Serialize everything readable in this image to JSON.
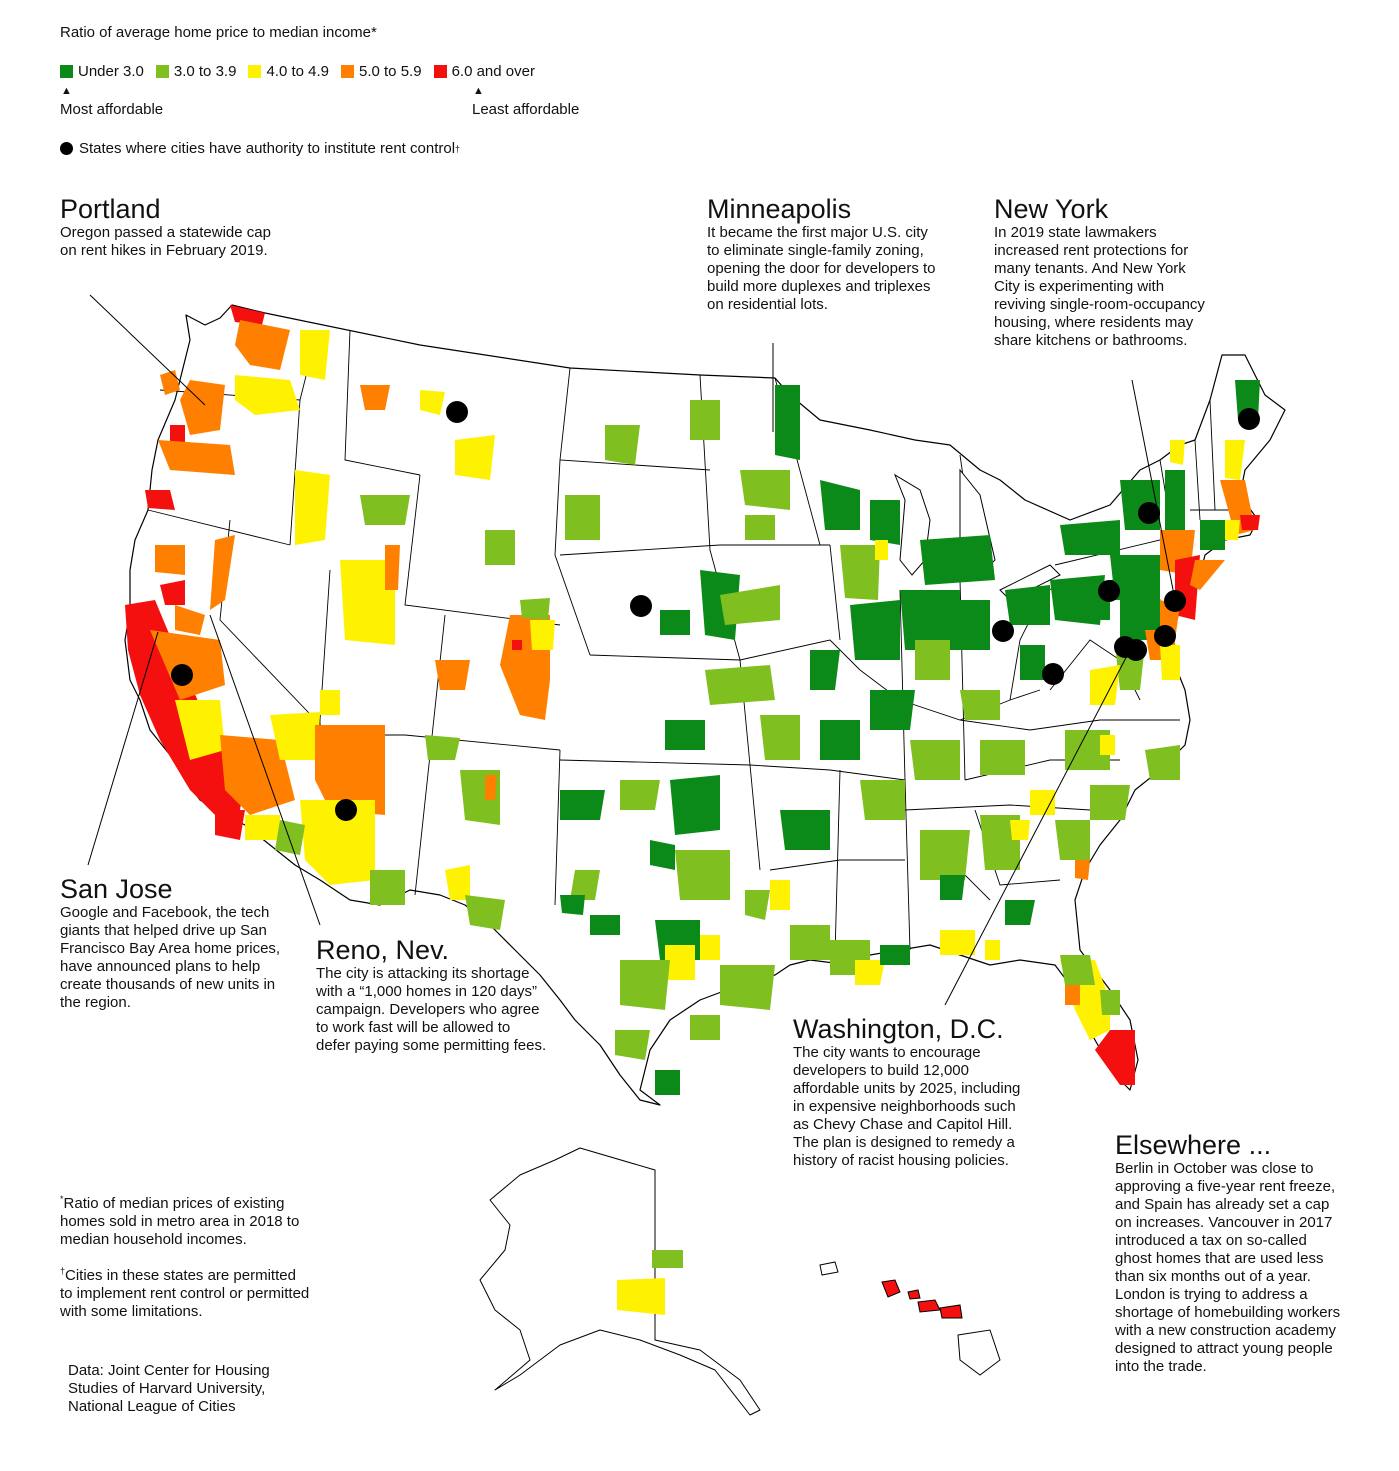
{
  "legend": {
    "title": "Ratio of average home price to median income*",
    "items": [
      {
        "label": "Under 3.0",
        "color": "#0b8a1a"
      },
      {
        "label": "3.0 to 3.9",
        "color": "#7fbf1f"
      },
      {
        "label": "4.0 to 4.9",
        "color": "#fff200"
      },
      {
        "label": "5.0 to 5.9",
        "color": "#ff7f00"
      },
      {
        "label": "6.0 and over",
        "color": "#f51010"
      }
    ],
    "most_affordable": "Most affordable",
    "least_affordable": "Least affordable",
    "rent_control_note": "States where cities have authority to institute rent control",
    "rent_control_mark": "†"
  },
  "annotations": {
    "portland": {
      "title": "Portland",
      "text": "Oregon passed a statewide cap on rent hikes in February 2019."
    },
    "minneapolis": {
      "title": "Minneapolis",
      "text": "It became the first major U.S. city to eliminate single-family zoning, opening the door for developers to build more duplexes and triplexes on residential lots."
    },
    "new_york": {
      "title": "New York",
      "text": "In 2019 state lawmakers increased rent protections for many tenants. And New York City is experimenting with reviving single-room-occupancy housing, where residents may share kitchens or bathrooms."
    },
    "san_jose": {
      "title": "San Jose",
      "text": "Google and Facebook, the tech giants that helped drive up San Francisco Bay Area home prices, have announced plans to help create thousands of new units in the region."
    },
    "reno": {
      "title": "Reno, Nev.",
      "text": "The city is attacking its shortage with a “1,000 homes in 120 days” campaign. Developers who agree to work fast will be allowed to defer paying some permitting fees."
    },
    "washington": {
      "title": "Washington, D.C.",
      "text": "The city wants to encourage developers to build 12,000 affordable units by 2025, including in expensive neighborhoods such as Chevy Chase and Capitol Hill. The plan is designed to remedy a history of racist housing policies."
    },
    "elsewhere": {
      "title": "Elsewhere ...",
      "text": "Berlin in October was close to approving a five-year rent freeze, and Spain has already set a cap on increases. Vancouver in 2017 introduced a tax on so-called ghost homes that are used less than six months out of a year. London is trying to address a shortage of homebuilding workers with a new construction academy designed to attract young people into the trade."
    }
  },
  "footnotes": {
    "ratio_mark": "*",
    "ratio_text": "Ratio of median prices of existing homes sold in metro area in 2018 to median household incomes.",
    "cities_mark": "†",
    "cities_text": "Cities in these states are permitted to implement rent control or permitted with some limitations.",
    "data_source": "Data: Joint Center for Housing Studies of Harvard University, National League of Cities"
  },
  "colors": {
    "under_3": "#0b8a1a",
    "3_to_3_9": "#7fbf1f",
    "4_to_4_9": "#fff200",
    "5_to_5_9": "#ff7f00",
    "6_and_over": "#f51010",
    "state_border": "#000000",
    "rent_control_dot": "#000000"
  }
}
